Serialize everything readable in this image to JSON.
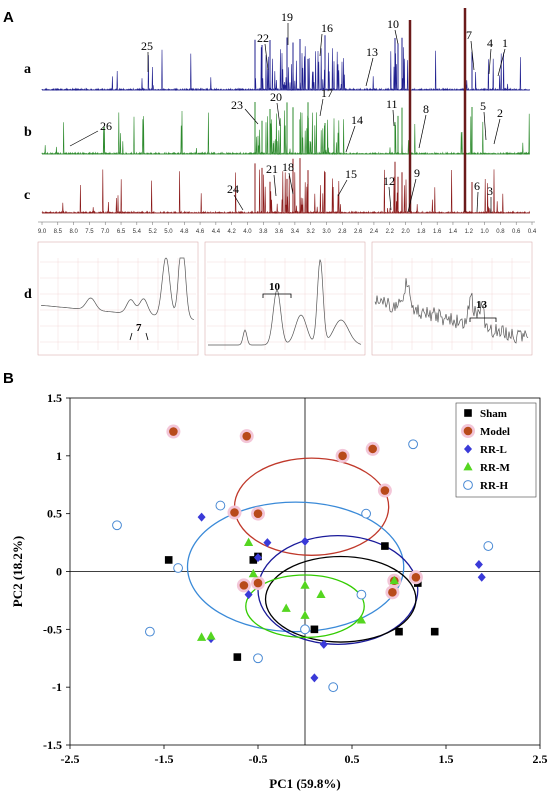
{
  "panels": {
    "a_label": "A",
    "b_label": "B"
  },
  "nmr": {
    "traces": [
      {
        "letter": "a",
        "color": "#1f1f8f",
        "peaks": [
          "25",
          "22",
          "19",
          "16",
          "13",
          "10",
          "7",
          "4",
          "1"
        ]
      },
      {
        "letter": "b",
        "color": "#2e8b2e",
        "peaks": [
          "26",
          "23",
          "20",
          "17",
          "14",
          "11",
          "8",
          "5",
          "2"
        ]
      },
      {
        "letter": "c",
        "color": "#8b1a1a",
        "peaks": [
          "24",
          "21",
          "18",
          "15",
          "12",
          "9",
          "6",
          "3"
        ]
      }
    ],
    "ppm_ticks": [
      "9.0",
      "8.5",
      "8.0",
      "7.5",
      "7.0",
      "6.5",
      "5.4",
      "5.2",
      "5.0",
      "4.8",
      "4.6",
      "4.4",
      "4.2",
      "4.0",
      "3.8",
      "3.6",
      "3.4",
      "3.2",
      "3.0",
      "2.8",
      "2.6",
      "2.4",
      "2.2",
      "2.0",
      "1.8",
      "1.6",
      "1.4",
      "1.2",
      "1.0",
      "0.8",
      "0.6",
      "0.4"
    ],
    "zoom_letter": "d",
    "zoom_labels": [
      "7",
      "10",
      "13"
    ]
  },
  "chart_data": {
    "type": "scatter",
    "xlabel": "PC1 (59.8%)",
    "ylabel": "PC2 (18.2%)",
    "xlim": [
      -2.5,
      2.5
    ],
    "ylim": [
      -1.5,
      1.5
    ],
    "xticks": [
      "-2.5",
      "-1.5",
      "-0.5",
      "0.5",
      "1.5",
      "2.5"
    ],
    "yticks": [
      "1.5",
      "1",
      "0.5",
      "0",
      "-0.5",
      "-1",
      "-1.5"
    ],
    "legend_position": "top-right",
    "series": [
      {
        "name": "Sham",
        "marker": "square",
        "color": "#000000",
        "points": [
          [
            -1.45,
            0.1
          ],
          [
            -0.55,
            0.1
          ],
          [
            -0.5,
            0.13
          ],
          [
            -0.72,
            -0.74
          ],
          [
            0.1,
            -0.5
          ],
          [
            0.85,
            0.22
          ],
          [
            1.2,
            -0.1
          ],
          [
            1.0,
            -0.52
          ],
          [
            1.38,
            -0.52
          ]
        ]
      },
      {
        "name": "Model",
        "marker": "circle",
        "color": "#b84a1a",
        "points": [
          [
            -1.4,
            1.21
          ],
          [
            -0.62,
            1.17
          ],
          [
            0.4,
            1.0
          ],
          [
            0.72,
            1.06
          ],
          [
            0.85,
            0.7
          ],
          [
            -0.75,
            0.51
          ],
          [
            -0.5,
            0.5
          ],
          [
            -0.65,
            -0.12
          ],
          [
            -0.5,
            -0.1
          ],
          [
            0.95,
            -0.08
          ],
          [
            1.18,
            -0.05
          ],
          [
            0.93,
            -0.18
          ]
        ]
      },
      {
        "name": "RR-L",
        "marker": "diamond",
        "color": "#3a3ad8",
        "points": [
          [
            -1.1,
            0.47
          ],
          [
            -0.4,
            0.25
          ],
          [
            0.0,
            0.26
          ],
          [
            -0.6,
            -0.2
          ],
          [
            -1.0,
            -0.58
          ],
          [
            -0.5,
            0.12
          ],
          [
            0.2,
            -0.63
          ],
          [
            0.1,
            -0.92
          ],
          [
            1.85,
            0.06
          ],
          [
            1.88,
            -0.05
          ]
        ]
      },
      {
        "name": "RR-M",
        "marker": "triangle",
        "color": "#55d620",
        "points": [
          [
            -1.1,
            -0.57
          ],
          [
            -1.0,
            -0.56
          ],
          [
            -0.6,
            0.25
          ],
          [
            -0.55,
            -0.02
          ],
          [
            -0.2,
            -0.32
          ],
          [
            0.0,
            -0.38
          ],
          [
            0.0,
            -0.12
          ],
          [
            0.17,
            -0.2
          ],
          [
            0.6,
            -0.42
          ],
          [
            0.95,
            -0.08
          ]
        ]
      },
      {
        "name": "RR-H",
        "marker": "open-circle",
        "color": "#4a8ad4",
        "points": [
          [
            -2.0,
            0.4
          ],
          [
            -1.35,
            0.03
          ],
          [
            -1.65,
            -0.52
          ],
          [
            -0.9,
            0.57
          ],
          [
            -0.5,
            -0.75
          ],
          [
            0.0,
            -0.5
          ],
          [
            0.3,
            -1.0
          ],
          [
            0.65,
            0.5
          ],
          [
            0.6,
            -0.2
          ],
          [
            1.15,
            1.1
          ],
          [
            1.95,
            0.22
          ]
        ]
      }
    ],
    "ellipses": [
      {
        "group": "Model",
        "color": "#c0392b",
        "cx": 0.07,
        "cy": 0.56,
        "rx": 0.82,
        "ry": 0.42
      },
      {
        "group": "RR-H",
        "color": "#3a8ad8",
        "cx": -0.1,
        "cy": 0.04,
        "rx": 1.15,
        "ry": 0.56
      },
      {
        "group": "RR-L",
        "color": "#1a1a9a",
        "cx": 0.35,
        "cy": -0.16,
        "rx": 0.85,
        "ry": 0.47
      },
      {
        "group": "Sham",
        "color": "#000000",
        "cx": 0.38,
        "cy": -0.24,
        "rx": 0.8,
        "ry": 0.37
      },
      {
        "group": "RR-M",
        "color": "#33cc00",
        "cx": 0.0,
        "cy": -0.3,
        "rx": 0.63,
        "ry": 0.27
      }
    ]
  }
}
